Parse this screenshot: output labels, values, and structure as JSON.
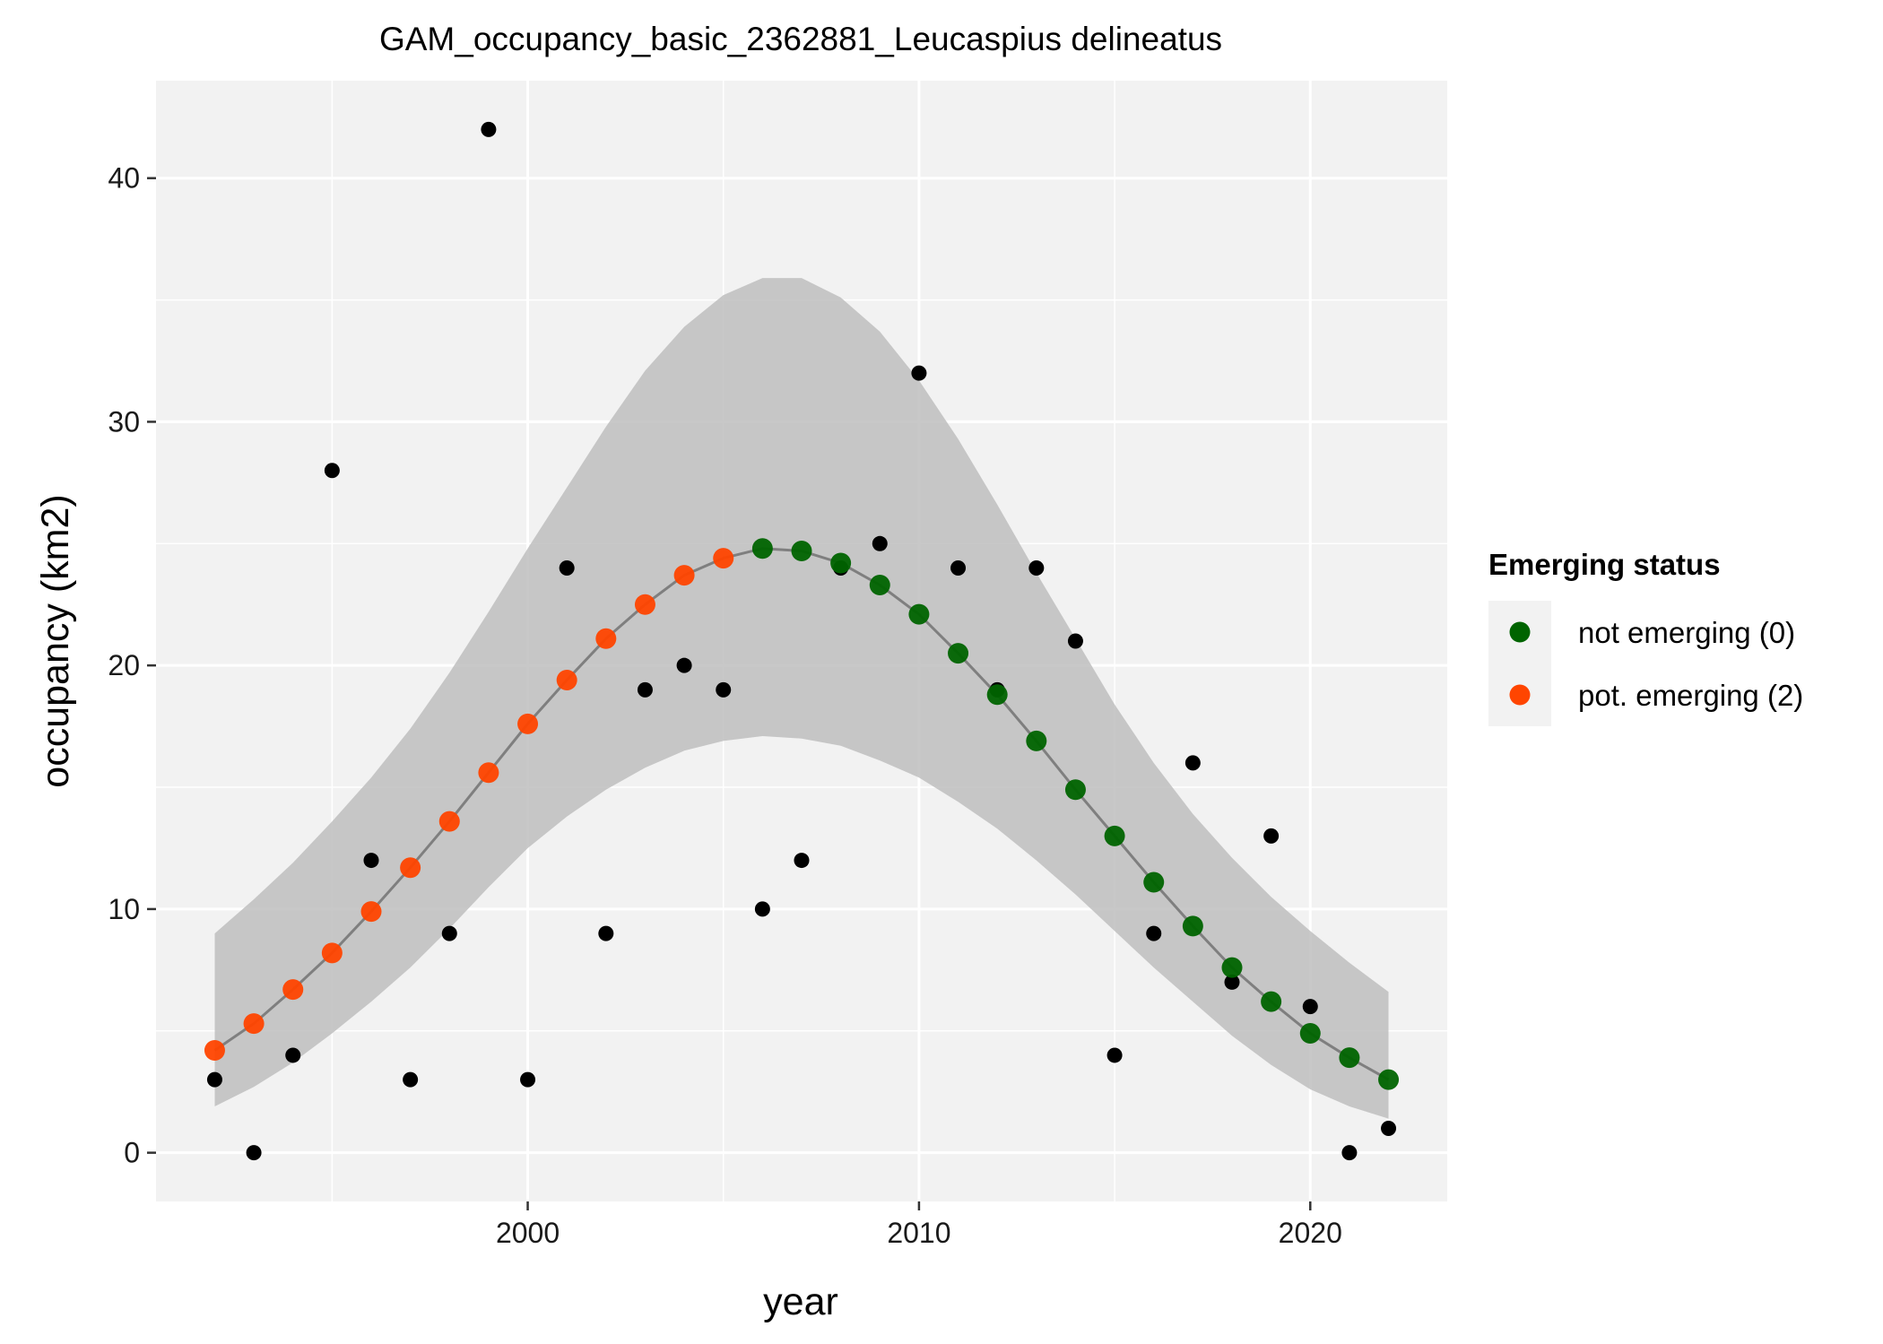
{
  "chart_data": {
    "type": "scatter",
    "title": "GAM_occupancy_basic_2362881_Leucaspius delineatus",
    "xlabel": "year",
    "ylabel": "occupancy (km2)",
    "xlim": [
      1990.5,
      2023.5
    ],
    "ylim": [
      -2,
      44
    ],
    "x_ticks": [
      2000,
      2010,
      2020
    ],
    "y_ticks": [
      0,
      10,
      20,
      30,
      40
    ],
    "grid": true,
    "panel_background": "#F2F2F2",
    "observed": {
      "color": "#000000",
      "points": [
        {
          "x": 1992,
          "y": 3
        },
        {
          "x": 1993,
          "y": 0
        },
        {
          "x": 1994,
          "y": 4
        },
        {
          "x": 1995,
          "y": 28
        },
        {
          "x": 1996,
          "y": 12
        },
        {
          "x": 1997,
          "y": 3
        },
        {
          "x": 1998,
          "y": 9
        },
        {
          "x": 1999,
          "y": 42
        },
        {
          "x": 2000,
          "y": 3
        },
        {
          "x": 2001,
          "y": 24
        },
        {
          "x": 2002,
          "y": 9
        },
        {
          "x": 2003,
          "y": 19
        },
        {
          "x": 2004,
          "y": 20
        },
        {
          "x": 2005,
          "y": 19
        },
        {
          "x": 2006,
          "y": 10
        },
        {
          "x": 2007,
          "y": 12
        },
        {
          "x": 2008,
          "y": 24
        },
        {
          "x": 2009,
          "y": 25
        },
        {
          "x": 2010,
          "y": 32
        },
        {
          "x": 2011,
          "y": 24
        },
        {
          "x": 2012,
          "y": 19
        },
        {
          "x": 2013,
          "y": 24
        },
        {
          "x": 2014,
          "y": 21
        },
        {
          "x": 2015,
          "y": 4
        },
        {
          "x": 2016,
          "y": 9
        },
        {
          "x": 2017,
          "y": 16
        },
        {
          "x": 2018,
          "y": 7
        },
        {
          "x": 2019,
          "y": 13
        },
        {
          "x": 2020,
          "y": 6
        },
        {
          "x": 2021,
          "y": 0
        },
        {
          "x": 2022,
          "y": 1
        }
      ]
    },
    "fit": {
      "line_color": "#7F7F7F",
      "ribbon_color": "#BEBEBE",
      "points": [
        {
          "x": 1992,
          "y": 4.2,
          "lo": 1.9,
          "hi": 9.0,
          "status": 2
        },
        {
          "x": 1993,
          "y": 5.3,
          "lo": 2.7,
          "hi": 10.4,
          "status": 2
        },
        {
          "x": 1994,
          "y": 6.7,
          "lo": 3.7,
          "hi": 11.9,
          "status": 2
        },
        {
          "x": 1995,
          "y": 8.2,
          "lo": 4.9,
          "hi": 13.6,
          "status": 2
        },
        {
          "x": 1996,
          "y": 9.9,
          "lo": 6.2,
          "hi": 15.4,
          "status": 2
        },
        {
          "x": 1997,
          "y": 11.7,
          "lo": 7.6,
          "hi": 17.4,
          "status": 2
        },
        {
          "x": 1998,
          "y": 13.6,
          "lo": 9.2,
          "hi": 19.7,
          "status": 2
        },
        {
          "x": 1999,
          "y": 15.6,
          "lo": 10.9,
          "hi": 22.2,
          "status": 2
        },
        {
          "x": 2000,
          "y": 17.6,
          "lo": 12.5,
          "hi": 24.8,
          "status": 2
        },
        {
          "x": 2001,
          "y": 19.4,
          "lo": 13.8,
          "hi": 27.3,
          "status": 2
        },
        {
          "x": 2002,
          "y": 21.1,
          "lo": 14.9,
          "hi": 29.8,
          "status": 2
        },
        {
          "x": 2003,
          "y": 22.5,
          "lo": 15.8,
          "hi": 32.1,
          "status": 2
        },
        {
          "x": 2004,
          "y": 23.7,
          "lo": 16.5,
          "hi": 33.9,
          "status": 2
        },
        {
          "x": 2005,
          "y": 24.4,
          "lo": 16.9,
          "hi": 35.2,
          "status": 2
        },
        {
          "x": 2006,
          "y": 24.8,
          "lo": 17.1,
          "hi": 35.9,
          "status": 0
        },
        {
          "x": 2007,
          "y": 24.7,
          "lo": 17.0,
          "hi": 35.9,
          "status": 0
        },
        {
          "x": 2008,
          "y": 24.2,
          "lo": 16.7,
          "hi": 35.1,
          "status": 0
        },
        {
          "x": 2009,
          "y": 23.3,
          "lo": 16.1,
          "hi": 33.7,
          "status": 0
        },
        {
          "x": 2010,
          "y": 22.1,
          "lo": 15.4,
          "hi": 31.7,
          "status": 0
        },
        {
          "x": 2011,
          "y": 20.5,
          "lo": 14.4,
          "hi": 29.3,
          "status": 0
        },
        {
          "x": 2012,
          "y": 18.8,
          "lo": 13.3,
          "hi": 26.6,
          "status": 0
        },
        {
          "x": 2013,
          "y": 16.9,
          "lo": 12.0,
          "hi": 23.8,
          "status": 0
        },
        {
          "x": 2014,
          "y": 14.9,
          "lo": 10.6,
          "hi": 21.1,
          "status": 0
        },
        {
          "x": 2015,
          "y": 13.0,
          "lo": 9.1,
          "hi": 18.4,
          "status": 0
        },
        {
          "x": 2016,
          "y": 11.1,
          "lo": 7.6,
          "hi": 16.0,
          "status": 0
        },
        {
          "x": 2017,
          "y": 9.3,
          "lo": 6.2,
          "hi": 13.9,
          "status": 0
        },
        {
          "x": 2018,
          "y": 7.6,
          "lo": 4.8,
          "hi": 12.1,
          "status": 0
        },
        {
          "x": 2019,
          "y": 6.2,
          "lo": 3.6,
          "hi": 10.5,
          "status": 0
        },
        {
          "x": 2020,
          "y": 4.9,
          "lo": 2.6,
          "hi": 9.1,
          "status": 0
        },
        {
          "x": 2021,
          "y": 3.9,
          "lo": 1.9,
          "hi": 7.8,
          "status": 0
        },
        {
          "x": 2022,
          "y": 3.0,
          "lo": 1.4,
          "hi": 6.6,
          "status": 0
        }
      ]
    },
    "legend": {
      "title": "Emerging status",
      "position": "right",
      "entries": [
        {
          "status": 0,
          "label": "not emerging (0)",
          "color": "#006400"
        },
        {
          "status": 2,
          "label": "pot. emerging (2)",
          "color": "#FF4500"
        }
      ]
    }
  }
}
